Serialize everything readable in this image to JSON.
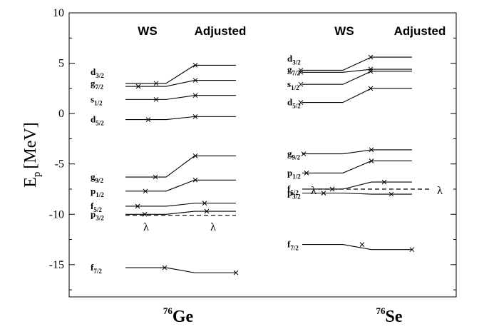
{
  "y_axis": {
    "label_main": "E",
    "label_sub": "p",
    "label_unit": "[MeV]",
    "range": [
      -18.2,
      10
    ],
    "ticks": [
      10,
      5,
      0,
      -5,
      -10,
      -15
    ],
    "tick_labels": [
      "10",
      "5",
      "0",
      "-5",
      "-10",
      "-15"
    ]
  },
  "panels": [
    {
      "id": "ge",
      "nucleus": {
        "mass": "76",
        "symbol": "Ge"
      },
      "headers": {
        "ws": "WS",
        "adjusted": "Adjusted"
      },
      "fermi_label": "λ",
      "levels": [
        {
          "name": "d",
          "sub": "3/2",
          "ws": 3.0,
          "adj": 4.8
        },
        {
          "name": "g",
          "sub": "7/2",
          "ws": 2.7,
          "adj": 3.3
        },
        {
          "name": "s",
          "sub": "1/2",
          "ws": 1.4,
          "adj": 1.8
        },
        {
          "name": "d",
          "sub": "5/2",
          "ws": -0.6,
          "adj": -0.3
        },
        {
          "name": "g",
          "sub": "9/2",
          "ws": -6.3,
          "adj": -4.2
        },
        {
          "name": "p",
          "sub": "1/2",
          "ws": -7.7,
          "adj": -6.6
        },
        {
          "name": "f",
          "sub": "5/2",
          "ws": -9.2,
          "adj": -8.9
        },
        {
          "name": "p",
          "sub": "3/2",
          "ws": -10.0,
          "adj": -9.7
        },
        {
          "name": "f",
          "sub": "7/2",
          "ws": -15.3,
          "adj": -15.8
        }
      ],
      "fermi": -10.1
    },
    {
      "id": "se",
      "nucleus": {
        "mass": "76",
        "symbol": "Se"
      },
      "headers": {
        "ws": "WS",
        "adjusted": "Adjusted"
      },
      "fermi_label": "λ",
      "levels": [
        {
          "name": "d",
          "sub": "3/2",
          "ws": 4.3,
          "adj": 5.6
        },
        {
          "name": "g",
          "sub": "7/2",
          "ws": 4.1,
          "adj": 4.4
        },
        {
          "name": "s",
          "sub": "1/2",
          "ws": 2.9,
          "adj": 4.2
        },
        {
          "name": "d",
          "sub": "5/2",
          "ws": 1.1,
          "adj": 2.5
        },
        {
          "name": "g",
          "sub": "9/2",
          "ws": -4.0,
          "adj": -3.6
        },
        {
          "name": "p",
          "sub": "1/2",
          "ws": -5.9,
          "adj": -4.7
        },
        {
          "name": "f",
          "sub": "5/2",
          "ws": -7.5,
          "adj": -6.8
        },
        {
          "name": "p",
          "sub": "3/2",
          "ws": -7.9,
          "adj": -8.0
        },
        {
          "name": "f",
          "sub": "7/2",
          "ws": -13.0,
          "adj": -13.5
        }
      ],
      "fermi": -7.5
    }
  ]
}
